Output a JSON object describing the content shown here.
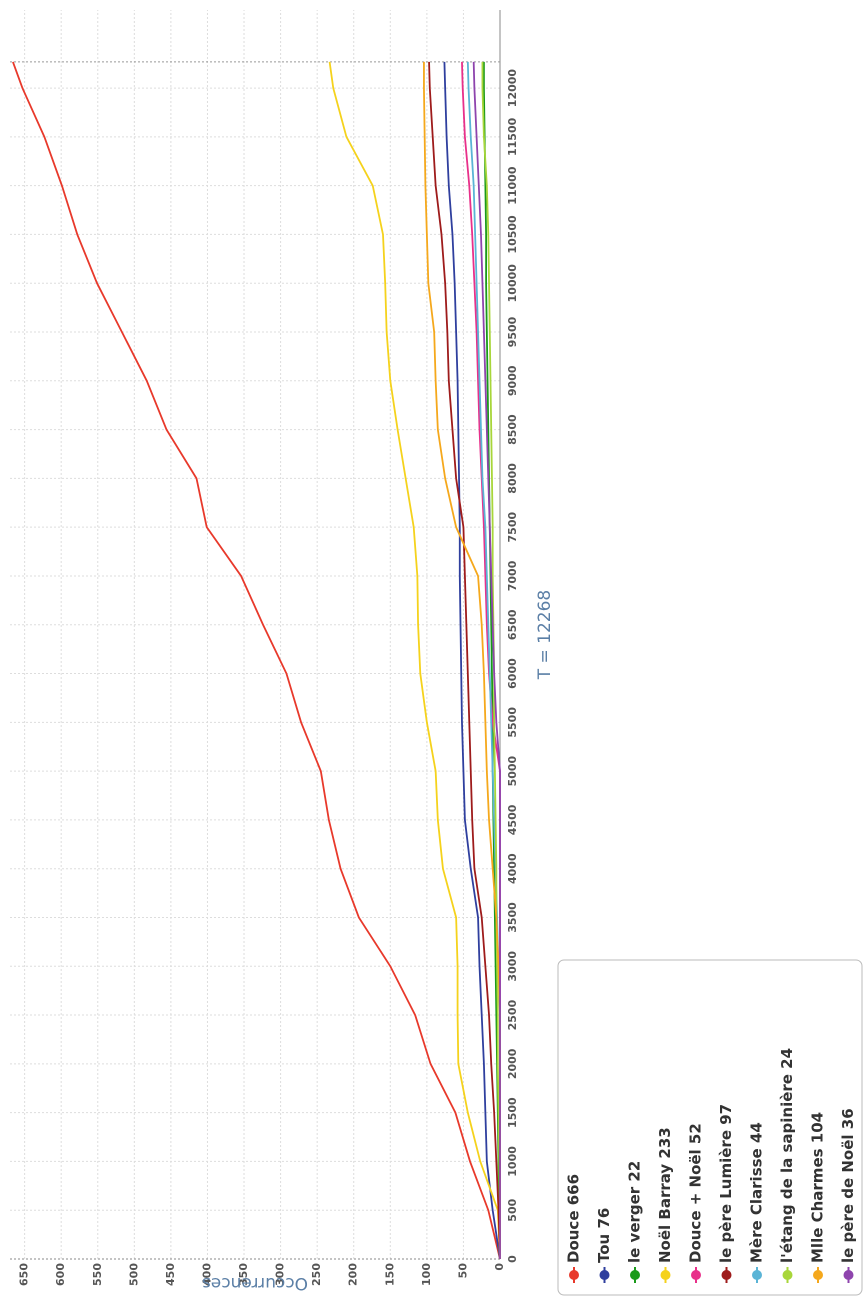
{
  "chart_data": {
    "type": "line",
    "xlabel": "T = 12268",
    "ylabel": "Occurrences",
    "x": [
      0,
      500,
      1000,
      1500,
      2000,
      2500,
      3000,
      3500,
      4000,
      4500,
      5000,
      5500,
      6000,
      6500,
      7000,
      7500,
      8000,
      8500,
      9000,
      9500,
      10000,
      10500,
      11000,
      11500,
      12000,
      12268
    ],
    "xlim": [
      0,
      12800
    ],
    "xticks": [
      0,
      500,
      1000,
      1500,
      2000,
      2500,
      3000,
      3500,
      4000,
      4500,
      5000,
      5500,
      6000,
      6500,
      7000,
      7500,
      8000,
      8500,
      9000,
      9500,
      10000,
      10500,
      11000,
      11500,
      12000
    ],
    "ylim": [
      0,
      670
    ],
    "yticks": [
      0,
      50,
      100,
      150,
      200,
      250,
      300,
      350,
      400,
      450,
      500,
      550,
      600,
      650
    ],
    "grid": true,
    "legend": "lower left",
    "series": [
      {
        "name": "Douce 666",
        "color": "#e8392b",
        "values": [
          0,
          16,
          41,
          61,
          95,
          116,
          150,
          193,
          218,
          234,
          245,
          272,
          292,
          324,
          354,
          401,
          415,
          456,
          483,
          517,
          551,
          578,
          599,
          623,
          653,
          666
        ]
      },
      {
        "name": "Tou 76",
        "color": "#2f3f9e",
        "values": [
          0,
          10,
          18,
          20,
          22,
          25,
          28,
          30,
          40,
          48,
          50,
          52,
          53,
          54,
          55,
          55,
          56,
          57,
          58,
          60,
          62,
          65,
          70,
          73,
          75,
          76
        ]
      },
      {
        "name": "le verger 22",
        "color": "#1a9a1a",
        "values": [
          0,
          1,
          2,
          3,
          4,
          5,
          6,
          7,
          8,
          9,
          10,
          10,
          11,
          12,
          13,
          14,
          15,
          16,
          17,
          18,
          19,
          19,
          20,
          21,
          22,
          22
        ]
      },
      {
        "name": "Noël Barray 233",
        "color": "#f5d21c",
        "values": [
          0,
          3,
          27,
          44,
          57,
          58,
          58,
          60,
          78,
          85,
          88,
          100,
          109,
          112,
          113,
          118,
          129,
          140,
          150,
          155,
          157,
          160,
          174,
          210,
          228,
          233
        ]
      },
      {
        "name": "Douce + Noël 52",
        "color": "#e8308a",
        "values": [
          0,
          0,
          0,
          0,
          0,
          0,
          0,
          0,
          0,
          0,
          0,
          10,
          15,
          18,
          20,
          22,
          25,
          28,
          30,
          32,
          35,
          38,
          42,
          48,
          51,
          52
        ]
      },
      {
        "name": "le père Lumière 97",
        "color": "#9e1b1b",
        "values": [
          0,
          2,
          5,
          8,
          12,
          15,
          20,
          25,
          35,
          38,
          40,
          42,
          44,
          46,
          48,
          50,
          60,
          65,
          70,
          72,
          75,
          80,
          88,
          92,
          96,
          97
        ]
      },
      {
        "name": "Mère Clarisse 44",
        "color": "#5ab4d6",
        "values": [
          0,
          0,
          0,
          0,
          0,
          0,
          2,
          4,
          6,
          8,
          10,
          12,
          14,
          16,
          18,
          20,
          24,
          26,
          28,
          30,
          32,
          34,
          36,
          40,
          43,
          44
        ]
      },
      {
        "name": "l'étang de la sapinière 24",
        "color": "#a8d63a",
        "values": [
          0,
          0,
          1,
          2,
          3,
          3,
          4,
          5,
          5,
          6,
          7,
          8,
          8,
          9,
          10,
          10,
          11,
          12,
          13,
          14,
          15,
          16,
          18,
          22,
          24,
          24
        ]
      },
      {
        "name": "Mlle Charmes 104",
        "color": "#f5a81c",
        "values": [
          0,
          0,
          0,
          0,
          0,
          0,
          2,
          5,
          10,
          15,
          18,
          20,
          22,
          25,
          30,
          60,
          75,
          85,
          88,
          90,
          98,
          100,
          102,
          103,
          104,
          104
        ]
      },
      {
        "name": "le père de Noël 36",
        "color": "#8e44ad",
        "values": [
          0,
          0,
          0,
          0,
          0,
          0,
          0,
          0,
          0,
          0,
          0,
          5,
          8,
          10,
          12,
          14,
          16,
          18,
          20,
          22,
          24,
          26,
          29,
          32,
          35,
          36
        ]
      }
    ]
  }
}
